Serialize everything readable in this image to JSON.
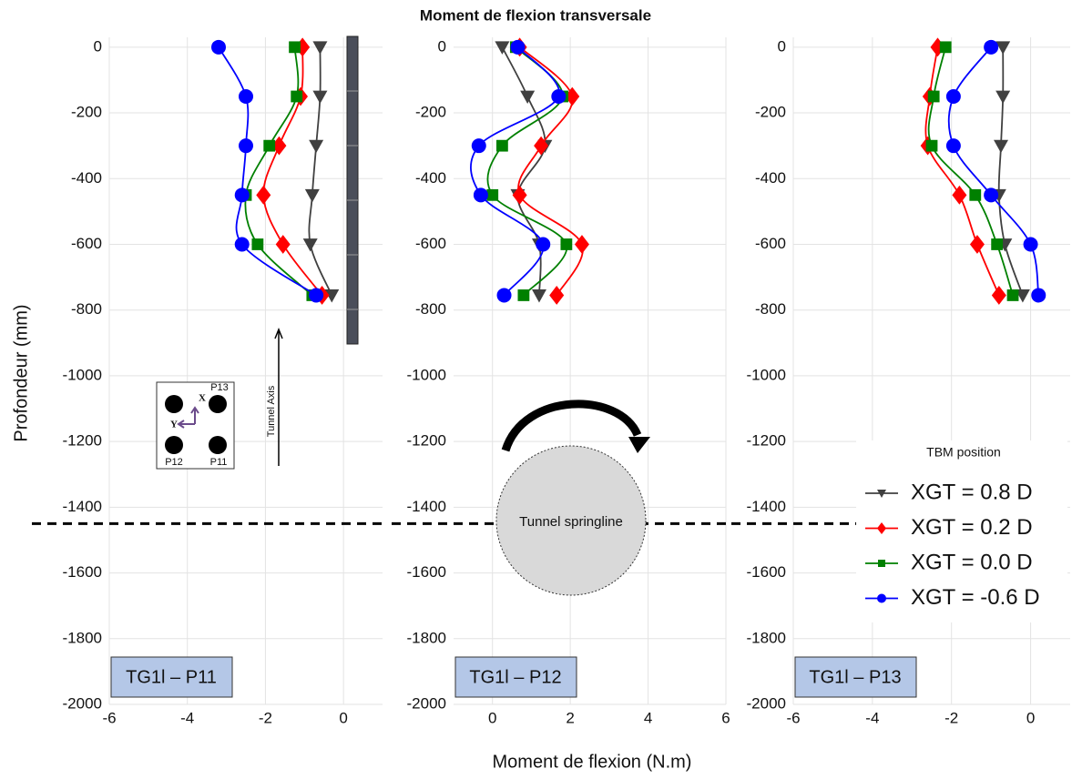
{
  "title": "Moment de flexion transversale",
  "xlabel": "Moment de flexion (N.m)",
  "ylabel": "Profondeur (mm)",
  "legend_title": "TBM position",
  "annotations": {
    "springline": "Tunnel springline",
    "tunnel_axis": "Tunnel Axis",
    "p13": "P13",
    "p12": "P12",
    "p11": "P11",
    "x": "X",
    "y": "Y"
  },
  "chart_data": [
    {
      "type": "line",
      "panel_label": "TG1l – P11",
      "xlim": [
        -6,
        1
      ],
      "xticks": [
        -6,
        -4,
        -2,
        0
      ],
      "ylim": [
        -2000,
        30
      ],
      "yticks": [
        0,
        -200,
        -400,
        -600,
        -800,
        -1000,
        -1200,
        -1400,
        -1600,
        -1800,
        -2000
      ],
      "grid": true,
      "reference_line": -1450,
      "y": [
        0,
        -150,
        -300,
        -450,
        -600,
        -755
      ],
      "series": [
        {
          "color": "#404040",
          "marker": "triangle",
          "values": [
            -0.6,
            -0.6,
            -0.7,
            -0.8,
            -0.85,
            -0.3
          ]
        },
        {
          "color": "#ff0000",
          "marker": "diamond",
          "values": [
            -1.05,
            -1.1,
            -1.65,
            -2.05,
            -1.55,
            -0.55
          ]
        },
        {
          "color": "#008000",
          "marker": "square",
          "values": [
            -1.25,
            -1.2,
            -1.9,
            -2.5,
            -2.2,
            -0.8
          ]
        },
        {
          "color": "#0000ff",
          "marker": "circle",
          "values": [
            -3.2,
            -2.5,
            -2.5,
            -2.6,
            -2.6,
            -0.7
          ]
        }
      ]
    },
    {
      "type": "line",
      "panel_label": "TG1l – P12",
      "xlim": [
        -1,
        6
      ],
      "xticks": [
        0,
        2,
        4,
        6
      ],
      "ylim": [
        -2000,
        30
      ],
      "yticks": [
        0,
        -200,
        -400,
        -600,
        -800,
        -1000,
        -1200,
        -1400,
        -1600,
        -1800,
        -2000
      ],
      "grid": true,
      "reference_line": -1450,
      "y": [
        0,
        -150,
        -300,
        -450,
        -600,
        -755
      ],
      "series": [
        {
          "color": "#404040",
          "marker": "triangle",
          "values": [
            0.25,
            0.9,
            1.35,
            0.65,
            1.2,
            1.2
          ]
        },
        {
          "color": "#ff0000",
          "marker": "diamond",
          "values": [
            0.7,
            2.05,
            1.25,
            0.7,
            2.3,
            1.65
          ]
        },
        {
          "color": "#008000",
          "marker": "square",
          "values": [
            0.6,
            1.8,
            0.25,
            0,
            1.9,
            0.8
          ]
        },
        {
          "color": "#0000ff",
          "marker": "circle",
          "values": [
            0.65,
            1.7,
            -0.35,
            -0.3,
            1.3,
            0.3
          ]
        }
      ]
    },
    {
      "type": "line",
      "panel_label": "TG1l – P13",
      "xlim": [
        -6,
        1
      ],
      "xticks": [
        -6,
        -4,
        -2,
        0
      ],
      "ylim": [
        -2000,
        30
      ],
      "yticks": [
        0,
        -200,
        -400,
        -600,
        -800,
        -1000,
        -1200,
        -1400,
        -1600,
        -1800,
        -2000
      ],
      "grid": true,
      "reference_line": -1450,
      "legend": "lower right",
      "y": [
        0,
        -150,
        -300,
        -450,
        -600,
        -755
      ],
      "series": [
        {
          "name": "XGT = 0.8 D",
          "color": "#404040",
          "marker": "triangle",
          "values": [
            -0.7,
            -0.7,
            -0.75,
            -0.8,
            -0.65,
            -0.2
          ]
        },
        {
          "name": "XGT = 0.2 D",
          "color": "#ff0000",
          "marker": "diamond",
          "values": [
            -2.35,
            -2.55,
            -2.6,
            -1.8,
            -1.35,
            -0.8
          ]
        },
        {
          "name": "XGT = 0.0 D",
          "color": "#008000",
          "marker": "square",
          "values": [
            -2.15,
            -2.45,
            -2.5,
            -1.4,
            -0.85,
            -0.45
          ]
        },
        {
          "name": "XGT = -0.6 D",
          "color": "#0000ff",
          "marker": "circle",
          "values": [
            -1.0,
            -1.95,
            -1.95,
            -1.0,
            0,
            0.2
          ]
        }
      ]
    }
  ]
}
